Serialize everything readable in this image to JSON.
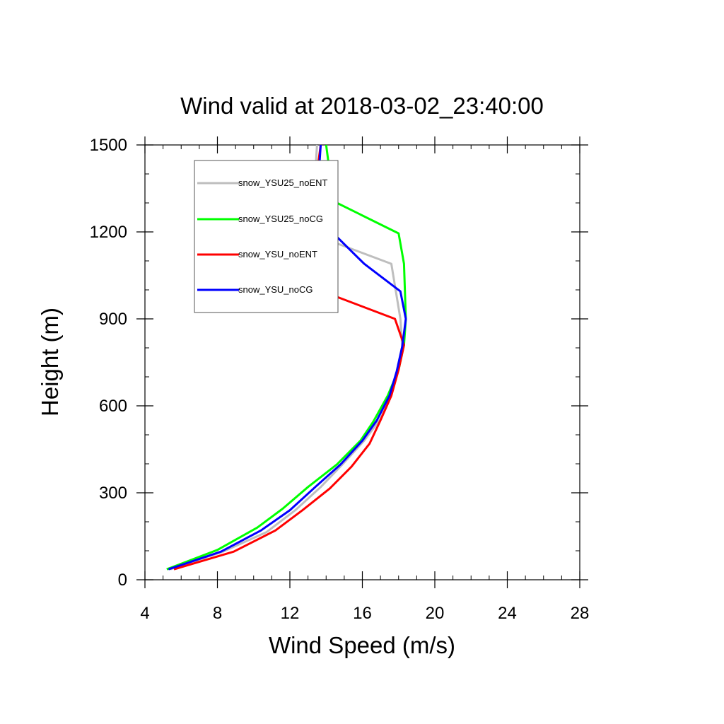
{
  "chart_data": {
    "type": "line",
    "title": "Wind valid at 2018-03-02_23:40:00",
    "xlabel": "Wind Speed (m/s)",
    "ylabel": "Height (m)",
    "xlim": [
      4,
      28
    ],
    "ylim": [
      0,
      1500
    ],
    "xticks": [
      4,
      8,
      12,
      16,
      20,
      24,
      28
    ],
    "yticks": [
      0,
      300,
      600,
      900,
      1200,
      1500
    ],
    "xtick_labels": [
      "4",
      "8",
      "12",
      "16",
      "20",
      "24",
      "28"
    ],
    "ytick_labels": [
      "0",
      "300",
      "600",
      "900",
      "1200",
      "1500"
    ],
    "grid": false,
    "legend_position": "top-left",
    "series": [
      {
        "name": "snow_YSU25_noENT",
        "color": "#bebebe",
        "points": [
          [
            5.4,
            36
          ],
          [
            8.3,
            97
          ],
          [
            10.7,
            164
          ],
          [
            12.3,
            240
          ],
          [
            13.7,
            320
          ],
          [
            14.9,
            398
          ],
          [
            16.1,
            480
          ],
          [
            17.0,
            555
          ],
          [
            17.6,
            638
          ],
          [
            17.9,
            720
          ],
          [
            18.2,
            805
          ],
          [
            18.1,
            900
          ],
          [
            17.6,
            1090
          ],
          [
            13.2,
            1193
          ],
          [
            13.0,
            1300
          ],
          [
            13.4,
            1405
          ],
          [
            13.5,
            1500
          ]
        ]
      },
      {
        "name": "snow_YSU25_noCG",
        "color": "#00ff00",
        "points": [
          [
            5.2,
            36
          ],
          [
            8.0,
            103
          ],
          [
            10.2,
            180
          ],
          [
            11.6,
            245
          ],
          [
            13.0,
            320
          ],
          [
            14.6,
            398
          ],
          [
            15.9,
            480
          ],
          [
            16.6,
            545
          ],
          [
            17.4,
            635
          ],
          [
            18.0,
            725
          ],
          [
            18.3,
            810
          ],
          [
            18.4,
            900
          ],
          [
            18.3,
            1090
          ],
          [
            18.0,
            1195
          ],
          [
            14.6,
            1300
          ],
          [
            14.2,
            1405
          ],
          [
            14.0,
            1500
          ]
        ]
      },
      {
        "name": "snow_YSU_noENT",
        "color": "#ff0000",
        "points": [
          [
            5.6,
            36
          ],
          [
            8.9,
            97
          ],
          [
            11.2,
            170
          ],
          [
            12.7,
            240
          ],
          [
            14.2,
            315
          ],
          [
            15.4,
            390
          ],
          [
            16.4,
            470
          ],
          [
            17.0,
            550
          ],
          [
            17.6,
            635
          ],
          [
            18.0,
            725
          ],
          [
            18.3,
            810
          ],
          [
            17.8,
            900
          ],
          [
            13.8,
            995
          ],
          [
            13.1,
            1090
          ],
          [
            12.9,
            1195
          ],
          [
            13.2,
            1300
          ],
          [
            13.5,
            1405
          ],
          [
            13.7,
            1500
          ]
        ]
      },
      {
        "name": "snow_YSU_noCG",
        "color": "#0000ff",
        "points": [
          [
            5.3,
            36
          ],
          [
            8.2,
            97
          ],
          [
            10.4,
            170
          ],
          [
            12.0,
            240
          ],
          [
            13.4,
            320
          ],
          [
            14.8,
            398
          ],
          [
            16.0,
            480
          ],
          [
            16.8,
            550
          ],
          [
            17.5,
            635
          ],
          [
            17.9,
            720
          ],
          [
            18.2,
            805
          ],
          [
            18.4,
            900
          ],
          [
            18.1,
            995
          ],
          [
            16.1,
            1090
          ],
          [
            14.4,
            1195
          ],
          [
            13.7,
            1300
          ],
          [
            13.6,
            1405
          ],
          [
            13.7,
            1500
          ]
        ]
      }
    ]
  }
}
